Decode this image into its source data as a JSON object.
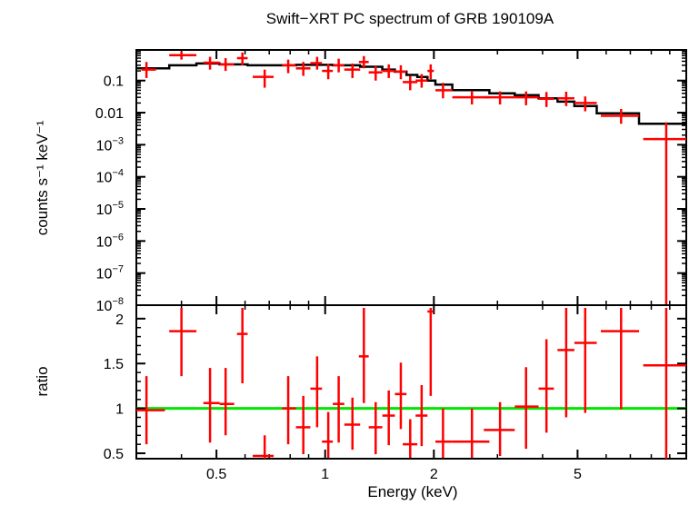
{
  "chart_data": [
    {
      "type": "scatter",
      "title": "Swift−XRT PC spectrum of GRB 190109A",
      "xlabel": "",
      "ylabel": "counts s⁻¹ keV⁻¹",
      "x_scale": "log",
      "y_scale": "log",
      "xlim": [
        0.3,
        10
      ],
      "ylim": [
        1e-08,
        0.9
      ],
      "x_ticks": [
        0.5,
        1,
        2,
        5
      ],
      "y_tick_labels": [
        {
          "v": 0.1,
          "label": "0.1"
        },
        {
          "v": 0.01,
          "label": "0.01"
        },
        {
          "v": 0.001,
          "base": "10",
          "exp": "−3"
        },
        {
          "v": 0.0001,
          "base": "10",
          "exp": "−4"
        },
        {
          "v": 1e-05,
          "base": "10",
          "exp": "−5"
        },
        {
          "v": 1e-06,
          "base": "10",
          "exp": "−6"
        },
        {
          "v": 1e-07,
          "base": "10",
          "exp": "−7"
        },
        {
          "v": 1e-08,
          "base": "10",
          "exp": "−8"
        }
      ],
      "series": [
        {
          "kind": "data",
          "color": "#ff0000",
          "points": [
            {
              "x": 0.32,
              "xlo": 0.31,
              "xhi": 0.34,
              "y": 0.22,
              "ylo": 0.12,
              "yhi": 0.38
            },
            {
              "x": 0.4,
              "xlo": 0.37,
              "xhi": 0.44,
              "y": 0.62,
              "ylo": 0.45,
              "yhi": 0.8
            },
            {
              "x": 0.48,
              "xlo": 0.46,
              "xhi": 0.51,
              "y": 0.36,
              "ylo": 0.22,
              "yhi": 0.55
            },
            {
              "x": 0.53,
              "xlo": 0.51,
              "xhi": 0.56,
              "y": 0.32,
              "ylo": 0.2,
              "yhi": 0.5
            },
            {
              "x": 0.59,
              "xlo": 0.57,
              "xhi": 0.61,
              "y": 0.5,
              "ylo": 0.3,
              "yhi": 0.75
            },
            {
              "x": 0.68,
              "xlo": 0.63,
              "xhi": 0.72,
              "y": 0.13,
              "ylo": 0.06,
              "yhi": 0.22
            },
            {
              "x": 0.79,
              "xlo": 0.76,
              "xhi": 0.83,
              "y": 0.3,
              "ylo": 0.17,
              "yhi": 0.45
            },
            {
              "x": 0.87,
              "xlo": 0.83,
              "xhi": 0.91,
              "y": 0.24,
              "ylo": 0.14,
              "yhi": 0.38
            },
            {
              "x": 0.95,
              "xlo": 0.91,
              "xhi": 0.98,
              "y": 0.35,
              "ylo": 0.22,
              "yhi": 0.55
            },
            {
              "x": 1.02,
              "xlo": 0.98,
              "xhi": 1.05,
              "y": 0.2,
              "ylo": 0.11,
              "yhi": 0.33
            },
            {
              "x": 1.09,
              "xlo": 1.05,
              "xhi": 1.13,
              "y": 0.3,
              "ylo": 0.18,
              "yhi": 0.48
            },
            {
              "x": 1.19,
              "xlo": 1.13,
              "xhi": 1.25,
              "y": 0.22,
              "ylo": 0.12,
              "yhi": 0.34
            },
            {
              "x": 1.28,
              "xlo": 1.24,
              "xhi": 1.32,
              "y": 0.38,
              "ylo": 0.24,
              "yhi": 0.58
            },
            {
              "x": 1.38,
              "xlo": 1.32,
              "xhi": 1.44,
              "y": 0.18,
              "ylo": 0.1,
              "yhi": 0.28
            },
            {
              "x": 1.5,
              "xlo": 1.44,
              "xhi": 1.56,
              "y": 0.2,
              "ylo": 0.12,
              "yhi": 0.32
            },
            {
              "x": 1.62,
              "xlo": 1.56,
              "xhi": 1.68,
              "y": 0.19,
              "ylo": 0.11,
              "yhi": 0.3
            },
            {
              "x": 1.72,
              "xlo": 1.64,
              "xhi": 1.8,
              "y": 0.09,
              "ylo": 0.05,
              "yhi": 0.14
            },
            {
              "x": 1.85,
              "xlo": 1.78,
              "xhi": 1.92,
              "y": 0.1,
              "ylo": 0.06,
              "yhi": 0.16
            },
            {
              "x": 1.96,
              "xlo": 1.92,
              "xhi": 2.0,
              "y": 0.2,
              "ylo": 0.11,
              "yhi": 0.32
            },
            {
              "x": 2.12,
              "xlo": 2.02,
              "xhi": 2.25,
              "y": 0.05,
              "ylo": 0.028,
              "yhi": 0.085
            },
            {
              "x": 2.55,
              "xlo": 2.25,
              "xhi": 2.85,
              "y": 0.03,
              "ylo": 0.018,
              "yhi": 0.048
            },
            {
              "x": 3.05,
              "xlo": 2.75,
              "xhi": 3.35,
              "y": 0.03,
              "ylo": 0.018,
              "yhi": 0.046
            },
            {
              "x": 3.6,
              "xlo": 3.35,
              "xhi": 3.9,
              "y": 0.03,
              "ylo": 0.017,
              "yhi": 0.046
            },
            {
              "x": 4.1,
              "xlo": 3.9,
              "xhi": 4.3,
              "y": 0.027,
              "ylo": 0.015,
              "yhi": 0.044
            },
            {
              "x": 4.65,
              "xlo": 4.4,
              "xhi": 4.9,
              "y": 0.028,
              "ylo": 0.016,
              "yhi": 0.045
            },
            {
              "x": 5.25,
              "xlo": 4.9,
              "xhi": 5.65,
              "y": 0.02,
              "ylo": 0.011,
              "yhi": 0.032
            },
            {
              "x": 6.6,
              "xlo": 5.8,
              "xhi": 7.4,
              "y": 0.008,
              "ylo": 0.0045,
              "yhi": 0.013
            },
            {
              "x": 8.8,
              "xlo": 7.6,
              "xhi": 10.0,
              "y": 0.0015,
              "ylo": 1e-08,
              "yhi": 0.005
            }
          ]
        },
        {
          "kind": "model",
          "color": "#000000",
          "steps": [
            {
              "x0": 0.3,
              "x1": 0.37,
              "y": 0.24
            },
            {
              "x0": 0.37,
              "x1": 0.44,
              "y": 0.3
            },
            {
              "x0": 0.44,
              "x1": 0.51,
              "y": 0.34
            },
            {
              "x0": 0.51,
              "x1": 0.61,
              "y": 0.32
            },
            {
              "x0": 0.61,
              "x1": 0.83,
              "y": 0.3
            },
            {
              "x0": 0.83,
              "x1": 1.05,
              "y": 0.31
            },
            {
              "x0": 1.05,
              "x1": 1.25,
              "y": 0.3
            },
            {
              "x0": 1.25,
              "x1": 1.44,
              "y": 0.27
            },
            {
              "x0": 1.44,
              "x1": 1.56,
              "y": 0.22
            },
            {
              "x0": 1.56,
              "x1": 1.68,
              "y": 0.19
            },
            {
              "x0": 1.68,
              "x1": 1.8,
              "y": 0.15
            },
            {
              "x0": 1.8,
              "x1": 1.92,
              "y": 0.13
            },
            {
              "x0": 1.92,
              "x1": 2.02,
              "y": 0.1
            },
            {
              "x0": 2.02,
              "x1": 2.25,
              "y": 0.075
            },
            {
              "x0": 2.25,
              "x1": 2.85,
              "y": 0.05
            },
            {
              "x0": 2.85,
              "x1": 3.35,
              "y": 0.04
            },
            {
              "x0": 3.35,
              "x1": 3.9,
              "y": 0.035
            },
            {
              "x0": 3.9,
              "x1": 4.4,
              "y": 0.028
            },
            {
              "x0": 4.4,
              "x1": 4.9,
              "y": 0.022
            },
            {
              "x0": 4.9,
              "x1": 5.65,
              "y": 0.016
            },
            {
              "x0": 5.65,
              "x1": 7.4,
              "y": 0.0095
            },
            {
              "x0": 7.4,
              "x1": 10.0,
              "y": 0.0045
            }
          ]
        }
      ]
    },
    {
      "type": "scatter",
      "title": "",
      "xlabel": "Energy (keV)",
      "ylabel": "ratio",
      "x_scale": "log",
      "y_scale": "linear",
      "xlim": [
        0.3,
        10
      ],
      "ylim": [
        0.44,
        2.15
      ],
      "x_ticks": [
        0.5,
        1,
        2,
        5
      ],
      "x_tick_labels": [
        "0.5",
        "1",
        "2",
        "5"
      ],
      "y_ticks": [
        0.5,
        1,
        1.5,
        2
      ],
      "y_tick_labels": [
        "0.5",
        "1",
        "1.5",
        "2"
      ],
      "reference_line": {
        "y": 1,
        "color": "#00e600"
      },
      "series": [
        {
          "kind": "data",
          "color": "#ff0000",
          "points": [
            {
              "x": 0.32,
              "xlo": 0.3,
              "xhi": 0.36,
              "y": 0.98,
              "ylo": 0.6,
              "yhi": 1.36
            },
            {
              "x": 0.4,
              "xlo": 0.37,
              "xhi": 0.44,
              "y": 1.86,
              "ylo": 1.36,
              "yhi": 2.12
            },
            {
              "x": 0.48,
              "xlo": 0.46,
              "xhi": 0.51,
              "y": 1.06,
              "ylo": 0.62,
              "yhi": 1.45
            },
            {
              "x": 0.53,
              "xlo": 0.51,
              "xhi": 0.56,
              "y": 1.05,
              "ylo": 0.7,
              "yhi": 1.45
            },
            {
              "x": 0.59,
              "xlo": 0.57,
              "xhi": 0.61,
              "y": 1.83,
              "ylo": 1.28,
              "yhi": 2.12
            },
            {
              "x": 0.68,
              "xlo": 0.63,
              "xhi": 0.72,
              "y": 0.47,
              "ylo": 0.44,
              "yhi": 0.7
            },
            {
              "x": 0.79,
              "xlo": 0.76,
              "xhi": 0.83,
              "y": 1.0,
              "ylo": 0.6,
              "yhi": 1.36
            },
            {
              "x": 0.87,
              "xlo": 0.83,
              "xhi": 0.91,
              "y": 0.79,
              "ylo": 0.49,
              "yhi": 1.14
            },
            {
              "x": 0.95,
              "xlo": 0.91,
              "xhi": 0.98,
              "y": 1.22,
              "ylo": 0.79,
              "yhi": 1.58
            },
            {
              "x": 1.02,
              "xlo": 0.98,
              "xhi": 1.05,
              "y": 0.63,
              "ylo": 0.45,
              "yhi": 0.96
            },
            {
              "x": 1.09,
              "xlo": 1.05,
              "xhi": 1.13,
              "y": 1.05,
              "ylo": 0.62,
              "yhi": 1.36
            },
            {
              "x": 1.19,
              "xlo": 1.13,
              "xhi": 1.25,
              "y": 0.82,
              "ylo": 0.54,
              "yhi": 1.12
            },
            {
              "x": 1.28,
              "xlo": 1.24,
              "xhi": 1.32,
              "y": 1.58,
              "ylo": 1.06,
              "yhi": 2.12
            },
            {
              "x": 1.38,
              "xlo": 1.32,
              "xhi": 1.44,
              "y": 0.79,
              "ylo": 0.49,
              "yhi": 1.07
            },
            {
              "x": 1.5,
              "xlo": 1.44,
              "xhi": 1.56,
              "y": 0.92,
              "ylo": 0.59,
              "yhi": 1.2
            },
            {
              "x": 1.62,
              "xlo": 1.56,
              "xhi": 1.68,
              "y": 1.16,
              "ylo": 0.77,
              "yhi": 1.51
            },
            {
              "x": 1.72,
              "xlo": 1.64,
              "xhi": 1.8,
              "y": 0.6,
              "ylo": 0.45,
              "yhi": 0.88
            },
            {
              "x": 1.85,
              "xlo": 1.78,
              "xhi": 1.92,
              "y": 0.92,
              "ylo": 0.58,
              "yhi": 1.26
            },
            {
              "x": 1.96,
              "xlo": 1.92,
              "xhi": 2.0,
              "y": 2.08,
              "ylo": 1.14,
              "yhi": 2.12
            },
            {
              "x": 2.12,
              "xlo": 2.02,
              "xhi": 2.25,
              "y": 0.63,
              "ylo": 0.45,
              "yhi": 1.0
            },
            {
              "x": 2.55,
              "xlo": 2.25,
              "xhi": 2.85,
              "y": 0.63,
              "ylo": 0.45,
              "yhi": 1.0
            },
            {
              "x": 3.05,
              "xlo": 2.75,
              "xhi": 3.35,
              "y": 0.76,
              "ylo": 0.47,
              "yhi": 1.07
            },
            {
              "x": 3.6,
              "xlo": 3.35,
              "xhi": 3.9,
              "y": 1.02,
              "ylo": 0.55,
              "yhi": 1.46
            },
            {
              "x": 4.1,
              "xlo": 3.9,
              "xhi": 4.3,
              "y": 1.22,
              "ylo": 0.73,
              "yhi": 1.77
            },
            {
              "x": 4.65,
              "xlo": 4.4,
              "xhi": 4.9,
              "y": 1.65,
              "ylo": 0.9,
              "yhi": 2.12
            },
            {
              "x": 5.25,
              "xlo": 4.9,
              "xhi": 5.65,
              "y": 1.73,
              "ylo": 0.95,
              "yhi": 2.12
            },
            {
              "x": 6.6,
              "xlo": 5.8,
              "xhi": 7.4,
              "y": 1.86,
              "ylo": 0.99,
              "yhi": 2.12
            },
            {
              "x": 8.8,
              "xlo": 7.6,
              "xhi": 10.0,
              "y": 1.48,
              "ylo": 0.44,
              "yhi": 2.12
            }
          ]
        }
      ]
    }
  ]
}
